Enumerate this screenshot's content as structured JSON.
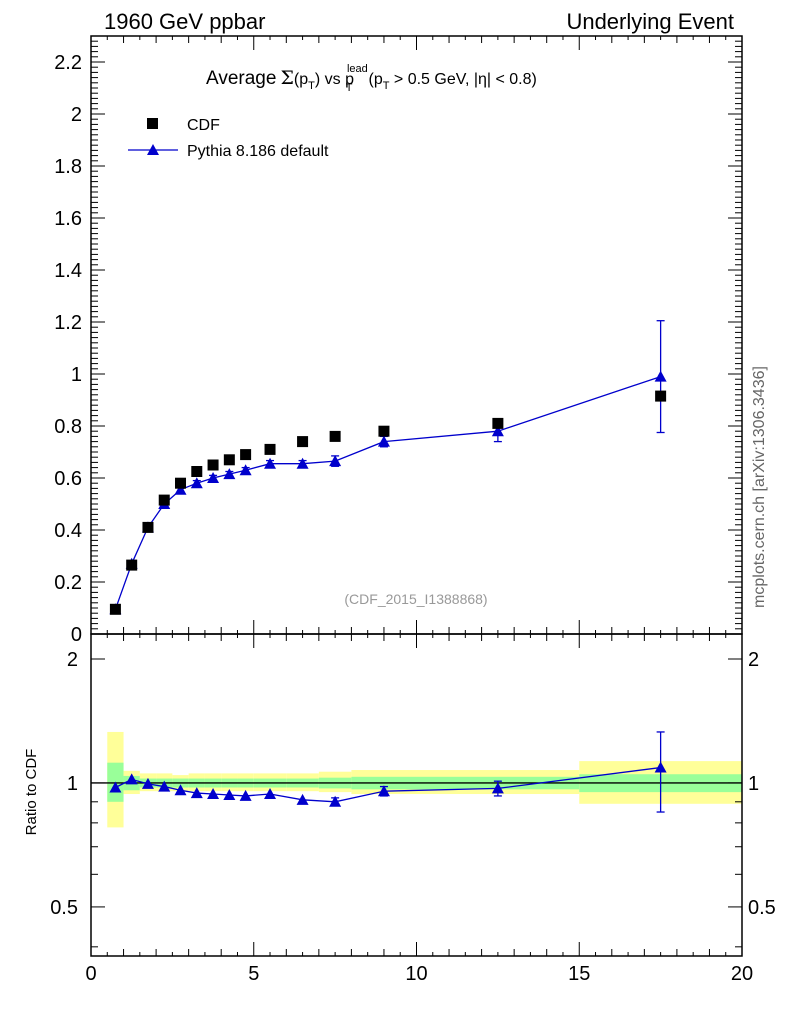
{
  "header": {
    "left": "1960 GeV ppbar",
    "right": "Underlying Event",
    "side": "mcplots.cern.ch [arXiv:1306.3436]",
    "analysis": "(CDF_2015_I1388868)"
  },
  "colors": {
    "data": "#000000",
    "mc": "#0000cc",
    "band_inner": "#99ff99",
    "band_outer": "#ffff99"
  },
  "chart_data": [
    {
      "type": "scatter",
      "title": "Average Σ(p_T) vs p_T^lead (p_T > 0.5 GeV, |η| < 0.8)",
      "xlim": [
        0,
        20
      ],
      "ylim": [
        0,
        2.3
      ],
      "y_ticks": [
        "0",
        "0.2",
        "0.4",
        "0.6",
        "0.8",
        "1",
        "1.2",
        "1.4",
        "1.6",
        "1.8",
        "2",
        "2.2"
      ],
      "legend": {
        "placement": "top-left",
        "entries": [
          "CDF",
          "Pythia 8.186 default"
        ]
      },
      "series": [
        {
          "name": "CDF",
          "marker": "square",
          "x": [
            0.75,
            1.25,
            1.75,
            2.25,
            2.75,
            3.25,
            3.75,
            4.25,
            4.75,
            5.5,
            6.5,
            7.5,
            9.0,
            12.5,
            17.5
          ],
          "values": [
            0.095,
            0.265,
            0.41,
            0.515,
            0.58,
            0.625,
            0.65,
            0.67,
            0.69,
            0.71,
            0.74,
            0.76,
            0.78,
            0.81,
            0.915
          ]
        },
        {
          "name": "Pythia 8.186 default",
          "marker": "triangle-line",
          "x": [
            0.75,
            1.25,
            1.75,
            2.25,
            2.75,
            3.25,
            3.75,
            4.25,
            4.75,
            5.5,
            6.5,
            7.5,
            9.0,
            12.5,
            17.5
          ],
          "values": [
            0.095,
            0.27,
            0.41,
            0.5,
            0.555,
            0.58,
            0.6,
            0.615,
            0.63,
            0.655,
            0.655,
            0.665,
            0.74,
            0.78,
            0.99
          ],
          "err": [
            0.005,
            0.005,
            0.008,
            0.01,
            0.01,
            0.01,
            0.01,
            0.01,
            0.01,
            0.012,
            0.012,
            0.02,
            0.02,
            0.04,
            0.215
          ]
        }
      ]
    },
    {
      "type": "scatter",
      "ylabel": "Ratio to CDF",
      "xlim": [
        0,
        20
      ],
      "ylim": [
        0.38,
        2.3
      ],
      "y_scale": "log",
      "x_ticks": [
        "0",
        "5",
        "10",
        "15",
        "20"
      ],
      "y_ticks": [
        "0.5",
        "1",
        "2"
      ],
      "reference_line": 1,
      "bands": {
        "edges": [
          0.5,
          1.0,
          1.5,
          2.0,
          2.5,
          3.0,
          3.5,
          4.0,
          4.5,
          5.0,
          6.0,
          7.0,
          8.0,
          10.0,
          15.0,
          20.0
        ],
        "inner_lo": [
          0.9,
          0.96,
          0.975,
          0.975,
          0.975,
          0.975,
          0.975,
          0.975,
          0.975,
          0.975,
          0.975,
          0.97,
          0.965,
          0.965,
          0.95
        ],
        "inner_hi": [
          1.12,
          1.04,
          1.025,
          1.025,
          1.025,
          1.025,
          1.025,
          1.025,
          1.025,
          1.025,
          1.025,
          1.03,
          1.035,
          1.035,
          1.05
        ],
        "outer_lo": [
          0.78,
          0.94,
          0.955,
          0.955,
          0.955,
          0.955,
          0.955,
          0.955,
          0.955,
          0.955,
          0.955,
          0.95,
          0.94,
          0.94,
          0.89
        ],
        "outer_hi": [
          1.33,
          1.07,
          1.055,
          1.055,
          1.045,
          1.055,
          1.055,
          1.055,
          1.055,
          1.055,
          1.055,
          1.065,
          1.075,
          1.075,
          1.13
        ]
      },
      "series": [
        {
          "name": "Pythia 8.186 default",
          "x": [
            0.75,
            1.25,
            1.75,
            2.25,
            2.75,
            3.25,
            3.75,
            4.25,
            4.75,
            5.5,
            6.5,
            7.5,
            9.0,
            12.5,
            17.5
          ],
          "values": [
            0.975,
            1.02,
            0.995,
            0.98,
            0.96,
            0.945,
            0.94,
            0.935,
            0.93,
            0.94,
            0.91,
            0.9,
            0.955,
            0.97,
            1.09
          ],
          "err": [
            0.005,
            0.005,
            0.008,
            0.01,
            0.01,
            0.01,
            0.01,
            0.01,
            0.01,
            0.012,
            0.012,
            0.02,
            0.025,
            0.04,
            0.24
          ]
        }
      ]
    }
  ]
}
